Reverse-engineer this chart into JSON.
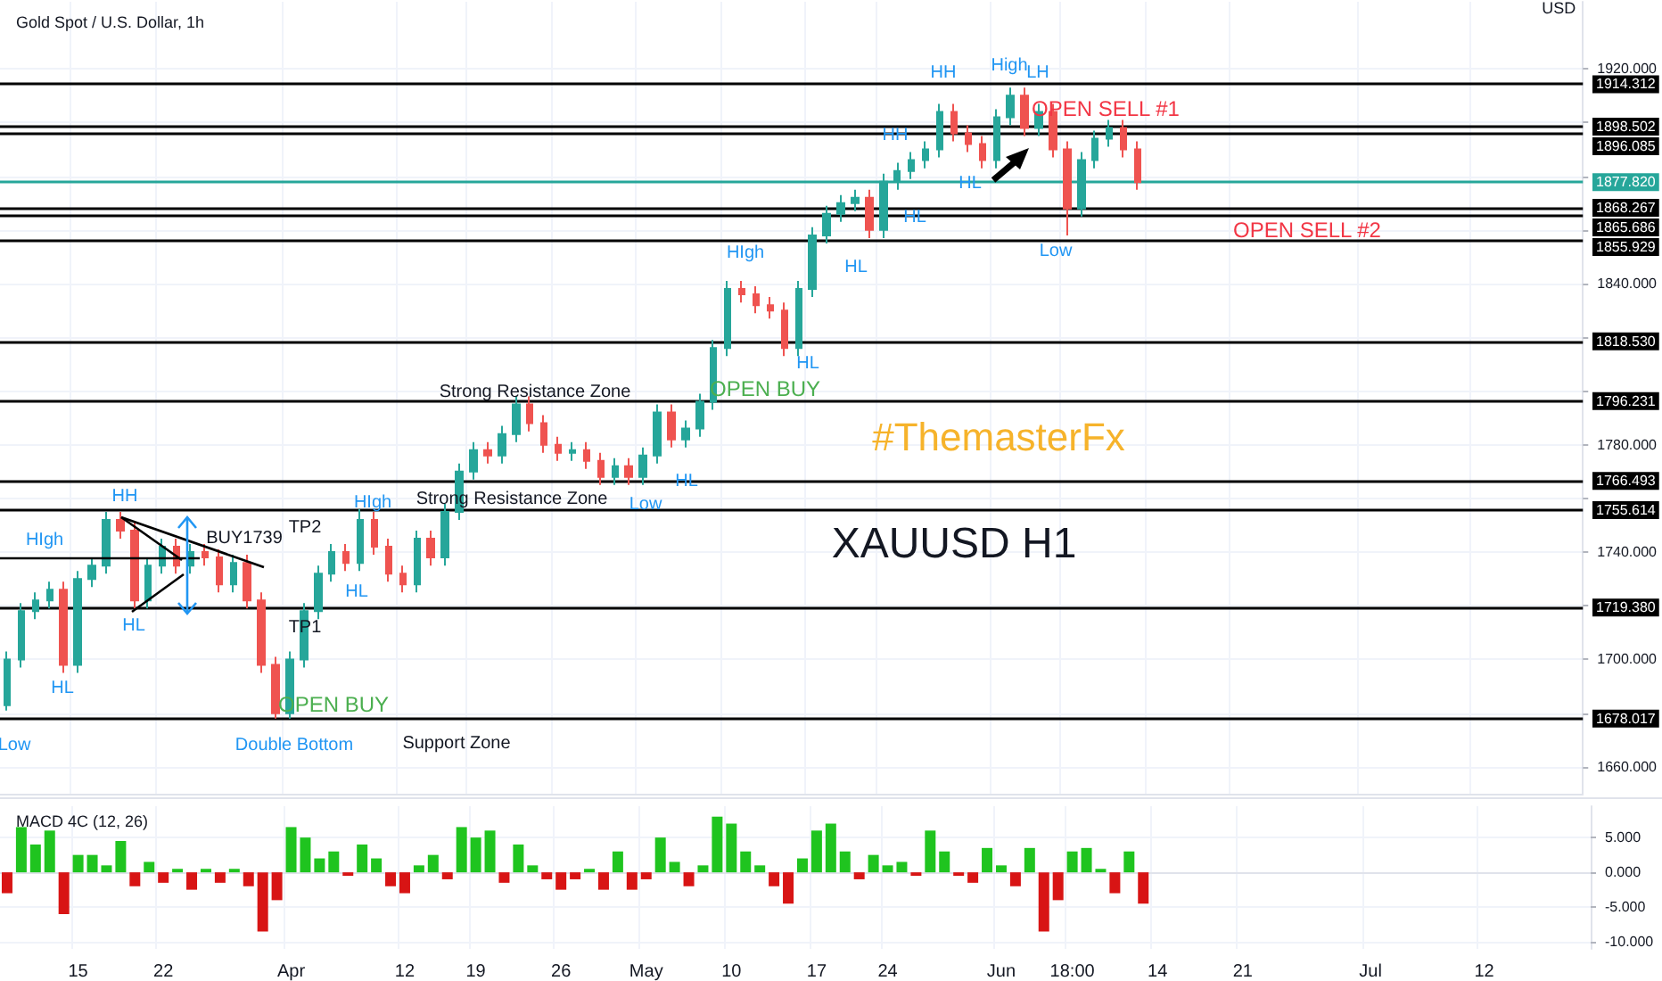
{
  "chart_data": [
    {
      "type": "candlestick",
      "title": "Gold Spot / U.S. Dollar, 1h",
      "ylabel": "USD",
      "categories": [
        null,
        null,
        null,
        null,
        null,
        "15",
        null,
        null,
        null,
        null,
        null,
        "22",
        null,
        null,
        null,
        null,
        null,
        null,
        null,
        null,
        "Apr",
        null,
        null,
        null,
        null,
        null,
        null,
        null,
        "12",
        null,
        null,
        null,
        null,
        "19",
        null,
        null,
        null,
        null,
        null,
        "26",
        null,
        null,
        null,
        null,
        null,
        "May",
        null,
        null,
        null,
        null,
        null,
        "10",
        null,
        null,
        null,
        null,
        null,
        "17",
        null,
        null,
        null,
        null,
        "24",
        null,
        null,
        null,
        null,
        null,
        null,
        null,
        "Jun",
        null,
        null,
        null,
        null,
        "18:00",
        null,
        null,
        null,
        null,
        null,
        "14",
        null,
        null,
        null,
        null,
        null,
        "21",
        null,
        null,
        null,
        null,
        null,
        null,
        null,
        null,
        "Jul",
        null,
        null,
        null,
        null,
        null,
        null,
        null,
        "12",
        null,
        null,
        null,
        null,
        null,
        null,
        null
      ],
      "ohlc": [
        [
          1683,
          1703,
          1681,
          1700
        ],
        [
          1700,
          1721,
          1697,
          1718
        ],
        [
          1718,
          1725,
          1715,
          1722
        ],
        [
          1722,
          1729,
          1719,
          1726
        ],
        [
          1726,
          1729,
          1695,
          1698
        ],
        [
          1698,
          1733,
          1695,
          1730
        ],
        [
          1730,
          1738,
          1727,
          1735
        ],
        [
          1735,
          1755,
          1732,
          1752
        ],
        [
          1752,
          1755,
          1745,
          1748
        ],
        [
          1748,
          1751,
          1719,
          1722
        ],
        [
          1722,
          1738,
          1719,
          1735
        ],
        [
          1735,
          1745,
          1732,
          1742
        ],
        [
          1742,
          1745,
          1732,
          1735
        ],
        [
          1735,
          1743,
          1732,
          1740
        ],
        [
          1740,
          1743,
          1735,
          1738
        ],
        [
          1738,
          1741,
          1725,
          1728
        ],
        [
          1728,
          1739,
          1725,
          1736
        ],
        [
          1736,
          1739,
          1719,
          1722
        ],
        [
          1722,
          1725,
          1695,
          1698
        ],
        [
          1698,
          1701,
          1678,
          1680
        ],
        [
          1680,
          1703,
          1678,
          1700
        ],
        [
          1700,
          1721,
          1697,
          1718
        ],
        [
          1718,
          1735,
          1715,
          1732
        ],
        [
          1732,
          1743,
          1729,
          1740
        ],
        [
          1740,
          1743,
          1733,
          1736
        ],
        [
          1736,
          1756,
          1733,
          1752
        ],
        [
          1752,
          1755,
          1739,
          1742
        ],
        [
          1742,
          1745,
          1729,
          1732
        ],
        [
          1732,
          1735,
          1725,
          1728
        ],
        [
          1728,
          1748,
          1725,
          1745
        ],
        [
          1745,
          1748,
          1735,
          1738
        ],
        [
          1738,
          1758,
          1735,
          1755
        ],
        [
          1755,
          1773,
          1752,
          1770
        ],
        [
          1770,
          1781,
          1767,
          1778
        ],
        [
          1778,
          1781,
          1773,
          1776
        ],
        [
          1776,
          1787,
          1773,
          1784
        ],
        [
          1784,
          1798,
          1781,
          1795
        ],
        [
          1795,
          1798,
          1785,
          1788
        ],
        [
          1788,
          1791,
          1777,
          1780
        ],
        [
          1780,
          1783,
          1774,
          1777
        ],
        [
          1777,
          1781,
          1774,
          1778
        ],
        [
          1778,
          1781,
          1771,
          1774
        ],
        [
          1774,
          1777,
          1765,
          1768
        ],
        [
          1768,
          1775,
          1765,
          1772
        ],
        [
          1772,
          1775,
          1765,
          1768
        ],
        [
          1768,
          1779,
          1765,
          1776
        ],
        [
          1776,
          1795,
          1773,
          1792
        ],
        [
          1792,
          1795,
          1779,
          1782
        ],
        [
          1782,
          1789,
          1779,
          1786
        ],
        [
          1786,
          1799,
          1783,
          1796
        ],
        [
          1796,
          1819,
          1793,
          1816
        ],
        [
          1816,
          1841,
          1813,
          1838
        ],
        [
          1838,
          1841,
          1833,
          1836
        ],
        [
          1836,
          1839,
          1829,
          1832
        ],
        [
          1832,
          1835,
          1827,
          1830
        ],
        [
          1830,
          1833,
          1813,
          1816
        ],
        [
          1816,
          1841,
          1813,
          1838
        ],
        [
          1838,
          1861,
          1835,
          1858
        ],
        [
          1858,
          1869,
          1855,
          1866
        ],
        [
          1866,
          1873,
          1863,
          1870
        ],
        [
          1870,
          1875,
          1867,
          1872
        ],
        [
          1872,
          1875,
          1857,
          1860
        ],
        [
          1860,
          1881,
          1857,
          1878
        ],
        [
          1878,
          1885,
          1875,
          1882
        ],
        [
          1882,
          1889,
          1879,
          1886
        ],
        [
          1886,
          1893,
          1883,
          1890
        ],
        [
          1890,
          1907,
          1887,
          1904
        ],
        [
          1904,
          1907,
          1893,
          1896
        ],
        [
          1896,
          1899,
          1889,
          1892
        ],
        [
          1892,
          1895,
          1883,
          1886
        ],
        [
          1886,
          1905,
          1883,
          1902
        ],
        [
          1902,
          1913,
          1899,
          1910
        ],
        [
          1910,
          1913,
          1895,
          1898
        ],
        [
          1898,
          1907,
          1895,
          1904
        ],
        [
          1904,
          1907,
          1887,
          1890
        ],
        [
          1890,
          1893,
          1858,
          1868
        ],
        [
          1868,
          1889,
          1865,
          1886
        ],
        [
          1886,
          1897,
          1883,
          1894
        ],
        [
          1894,
          1901,
          1891,
          1898
        ],
        [
          1898,
          1901,
          1887,
          1890
        ],
        [
          1890,
          1893,
          1875,
          1877.82
        ],
        null,
        null,
        null,
        null,
        null,
        null,
        null,
        null,
        null,
        null,
        null,
        null,
        null,
        null,
        null,
        null,
        null,
        null,
        null,
        null,
        null,
        null,
        null,
        null,
        null,
        null,
        null,
        null,
        null,
        null,
        null
      ],
      "colors": [
        "#26a69a",
        "#26a69a",
        "#26a69a",
        "#26a69a",
        "#ef5350",
        "#26a69a",
        "#26a69a",
        "#26a69a",
        "#ef5350",
        "#ef5350",
        "#26a69a",
        "#26a69a",
        "#ef5350",
        "#26a69a",
        "#ef5350",
        "#ef5350",
        "#26a69a",
        "#ef5350",
        "#ef5350",
        "#ef5350",
        "#26a69a",
        "#26a69a",
        "#26a69a",
        "#26a69a",
        "#ef5350",
        "#26a69a",
        "#ef5350",
        "#ef5350",
        "#ef5350",
        "#26a69a",
        "#ef5350",
        "#26a69a",
        "#26a69a",
        "#26a69a",
        "#ef5350",
        "#26a69a",
        "#26a69a",
        "#ef5350",
        "#ef5350",
        "#ef5350",
        "#26a69a",
        "#ef5350",
        "#ef5350",
        "#26a69a",
        "#ef5350",
        "#26a69a",
        "#26a69a",
        "#ef5350",
        "#26a69a",
        "#26a69a",
        "#26a69a",
        "#26a69a",
        "#ef5350",
        "#ef5350",
        "#ef5350",
        "#ef5350",
        "#26a69a",
        "#26a69a",
        "#26a69a",
        "#26a69a",
        "#26a69a",
        "#ef5350",
        "#26a69a",
        "#26a69a",
        "#26a69a",
        "#26a69a",
        "#26a69a",
        "#ef5350",
        "#ef5350",
        "#ef5350",
        "#26a69a",
        "#26a69a",
        "#ef5350",
        "#26a69a",
        "#ef5350",
        "#ef5350",
        "#26a69a",
        "#26a69a",
        "#26a69a",
        "#ef5350",
        "#ef5350",
        null,
        null,
        null,
        null,
        null,
        null,
        null,
        null,
        null,
        null,
        null,
        null,
        null,
        null,
        null,
        null,
        null,
        null,
        null,
        null,
        null,
        null,
        null,
        null,
        null,
        null,
        null,
        null,
        null,
        null,
        null
      ],
      "ylim": [
        1650,
        1945
      ],
      "yticks": [
        {
          "value": 1660,
          "label": "1660.000"
        },
        {
          "value": 1680,
          "label": null
        },
        {
          "value": 1700,
          "label": "1700.000"
        },
        {
          "value": 1720,
          "label": null
        },
        {
          "value": 1740,
          "label": "1740.000"
        },
        {
          "value": 1760,
          "label": null
        },
        {
          "value": 1780,
          "label": "1780.000"
        },
        {
          "value": 1800,
          "label": null
        },
        {
          "value": 1820,
          "label": null
        },
        {
          "value": 1840,
          "label": "1840.000"
        },
        {
          "value": 1860,
          "label": null
        },
        {
          "value": 1880,
          "label": null
        },
        {
          "value": 1900,
          "label": null
        },
        {
          "value": 1920,
          "label": "1920.000"
        }
      ],
      "grid": true,
      "tick_labels": "y",
      "ref_lines": [
        {
          "axis": "y",
          "value": 1914.312,
          "label": "1914.312",
          "color": "#000000"
        },
        {
          "axis": "y",
          "value": 1898.502,
          "label": "1898.502",
          "color": "#000000"
        },
        {
          "axis": "y",
          "value": 1896.085,
          "label": "1896.085",
          "color": "#000000"
        },
        {
          "axis": "y",
          "value": 1877.82,
          "label": "1877.820",
          "color": "#26a69a"
        },
        {
          "axis": "y",
          "value": 1868.267,
          "label": "1868.267",
          "color": "#000000"
        },
        {
          "axis": "y",
          "value": 1865.686,
          "label": "1865.686",
          "color": "#000000"
        },
        {
          "axis": "y",
          "value": 1855.929,
          "label": "1855.929",
          "color": "#000000"
        },
        {
          "axis": "y",
          "value": 1818.53,
          "label": "1818.530",
          "color": "#000000"
        },
        {
          "axis": "y",
          "value": 1796.231,
          "label": "1796.231",
          "color": "#000000"
        },
        {
          "axis": "y",
          "value": 1766.493,
          "label": "1766.493",
          "color": "#000000"
        },
        {
          "axis": "y",
          "value": 1755.614,
          "label": "1755.614",
          "color": "#000000"
        },
        {
          "axis": "y",
          "value": 1719.38,
          "label": "1719.380",
          "color": "#000000"
        },
        {
          "axis": "y",
          "value": 1678.017,
          "label": "1678.017",
          "color": "#000000"
        }
      ],
      "annotations": [
        "Low",
        "HIgh",
        "HL",
        {
          "text": "HH",
          "y": 1754
        },
        {
          "text": "HL",
          "y": 1721
        },
        {
          "text": "BUY1739",
          "y": 1739
        },
        "TP2",
        "TP1",
        "OPEN BUY",
        "Double Bottom",
        "Support Zone",
        "HL",
        "HIgh",
        "Strong Resistance Zone",
        "Strong Resistance Zone",
        "Low",
        "HL",
        "OPEN BUY",
        "HIgh",
        "HL",
        "HL",
        "HL",
        "HH",
        "HL",
        "HH",
        "High",
        "LH",
        "OPEN SELL #1",
        "Low",
        "OPEN SELL #2",
        "#ThemasterFx",
        "XAUUSD H1"
      ]
    },
    {
      "type": "bar",
      "title": "MACD 4C (12, 26)",
      "stacked": true,
      "series": [
        {
          "color": "#1fc41f",
          "values": [
            null,
            6.5,
            4,
            6,
            null,
            2.5,
            2.5,
            1,
            4.5,
            null,
            1.5,
            null,
            0.5,
            null,
            0.5,
            null,
            0.5,
            null,
            null,
            null,
            6.5,
            5,
            2,
            3,
            null,
            4,
            2,
            null,
            null,
            1,
            2.5,
            null,
            6.5,
            5,
            6,
            null,
            4,
            1,
            null,
            null,
            null,
            0.5,
            null,
            3,
            null,
            null,
            5,
            1.5,
            null,
            1,
            8,
            7,
            3,
            1,
            null,
            null,
            2,
            6,
            7,
            3,
            null,
            2.5,
            1,
            1.5,
            null,
            6,
            3,
            null,
            null,
            3.5,
            1,
            null,
            3.5,
            null,
            null,
            3,
            3.5,
            0.5,
            null,
            3,
            null,
            null,
            null,
            null,
            null,
            null,
            null,
            null,
            null,
            null,
            null,
            null,
            null,
            null,
            null,
            null,
            null,
            null,
            null,
            null,
            null,
            null,
            null,
            null,
            null,
            null,
            null,
            null,
            null,
            null,
            null,
            null
          ]
        },
        {
          "color": "#d81414",
          "values": [
            -3,
            null,
            null,
            null,
            -6,
            null,
            null,
            null,
            null,
            -2,
            null,
            -1.5,
            null,
            -2.5,
            null,
            -1.5,
            null,
            -2,
            -8.5,
            -4,
            null,
            null,
            null,
            null,
            -0.5,
            null,
            null,
            -2,
            -3,
            null,
            null,
            -1,
            null,
            null,
            null,
            -1.5,
            null,
            null,
            -1,
            -2.5,
            -1,
            null,
            -2.5,
            null,
            -2.5,
            -1,
            null,
            null,
            -2,
            null,
            null,
            null,
            null,
            null,
            -2,
            -4.5,
            null,
            null,
            null,
            null,
            -1,
            null,
            null,
            null,
            -0.5,
            null,
            null,
            -0.5,
            -1.5,
            null,
            null,
            -2,
            null,
            -8.5,
            -4,
            null,
            null,
            null,
            -3,
            null,
            -4.5,
            null,
            null,
            null,
            null,
            null,
            null,
            null,
            null,
            null,
            null,
            null,
            null,
            null,
            null,
            null,
            null,
            null,
            null,
            null,
            null,
            null,
            null,
            null,
            null,
            null,
            null,
            null,
            null,
            null,
            null,
            null
          ]
        }
      ],
      "ylim": [
        -11,
        9.5
      ],
      "yticks": [
        {
          "value": -10,
          "label": "-10.000"
        },
        {
          "value": -5,
          "label": "-5.000"
        },
        {
          "value": 0,
          "label": "0.000"
        },
        {
          "value": 5,
          "label": "5.000"
        }
      ],
      "grid": true
    }
  ]
}
